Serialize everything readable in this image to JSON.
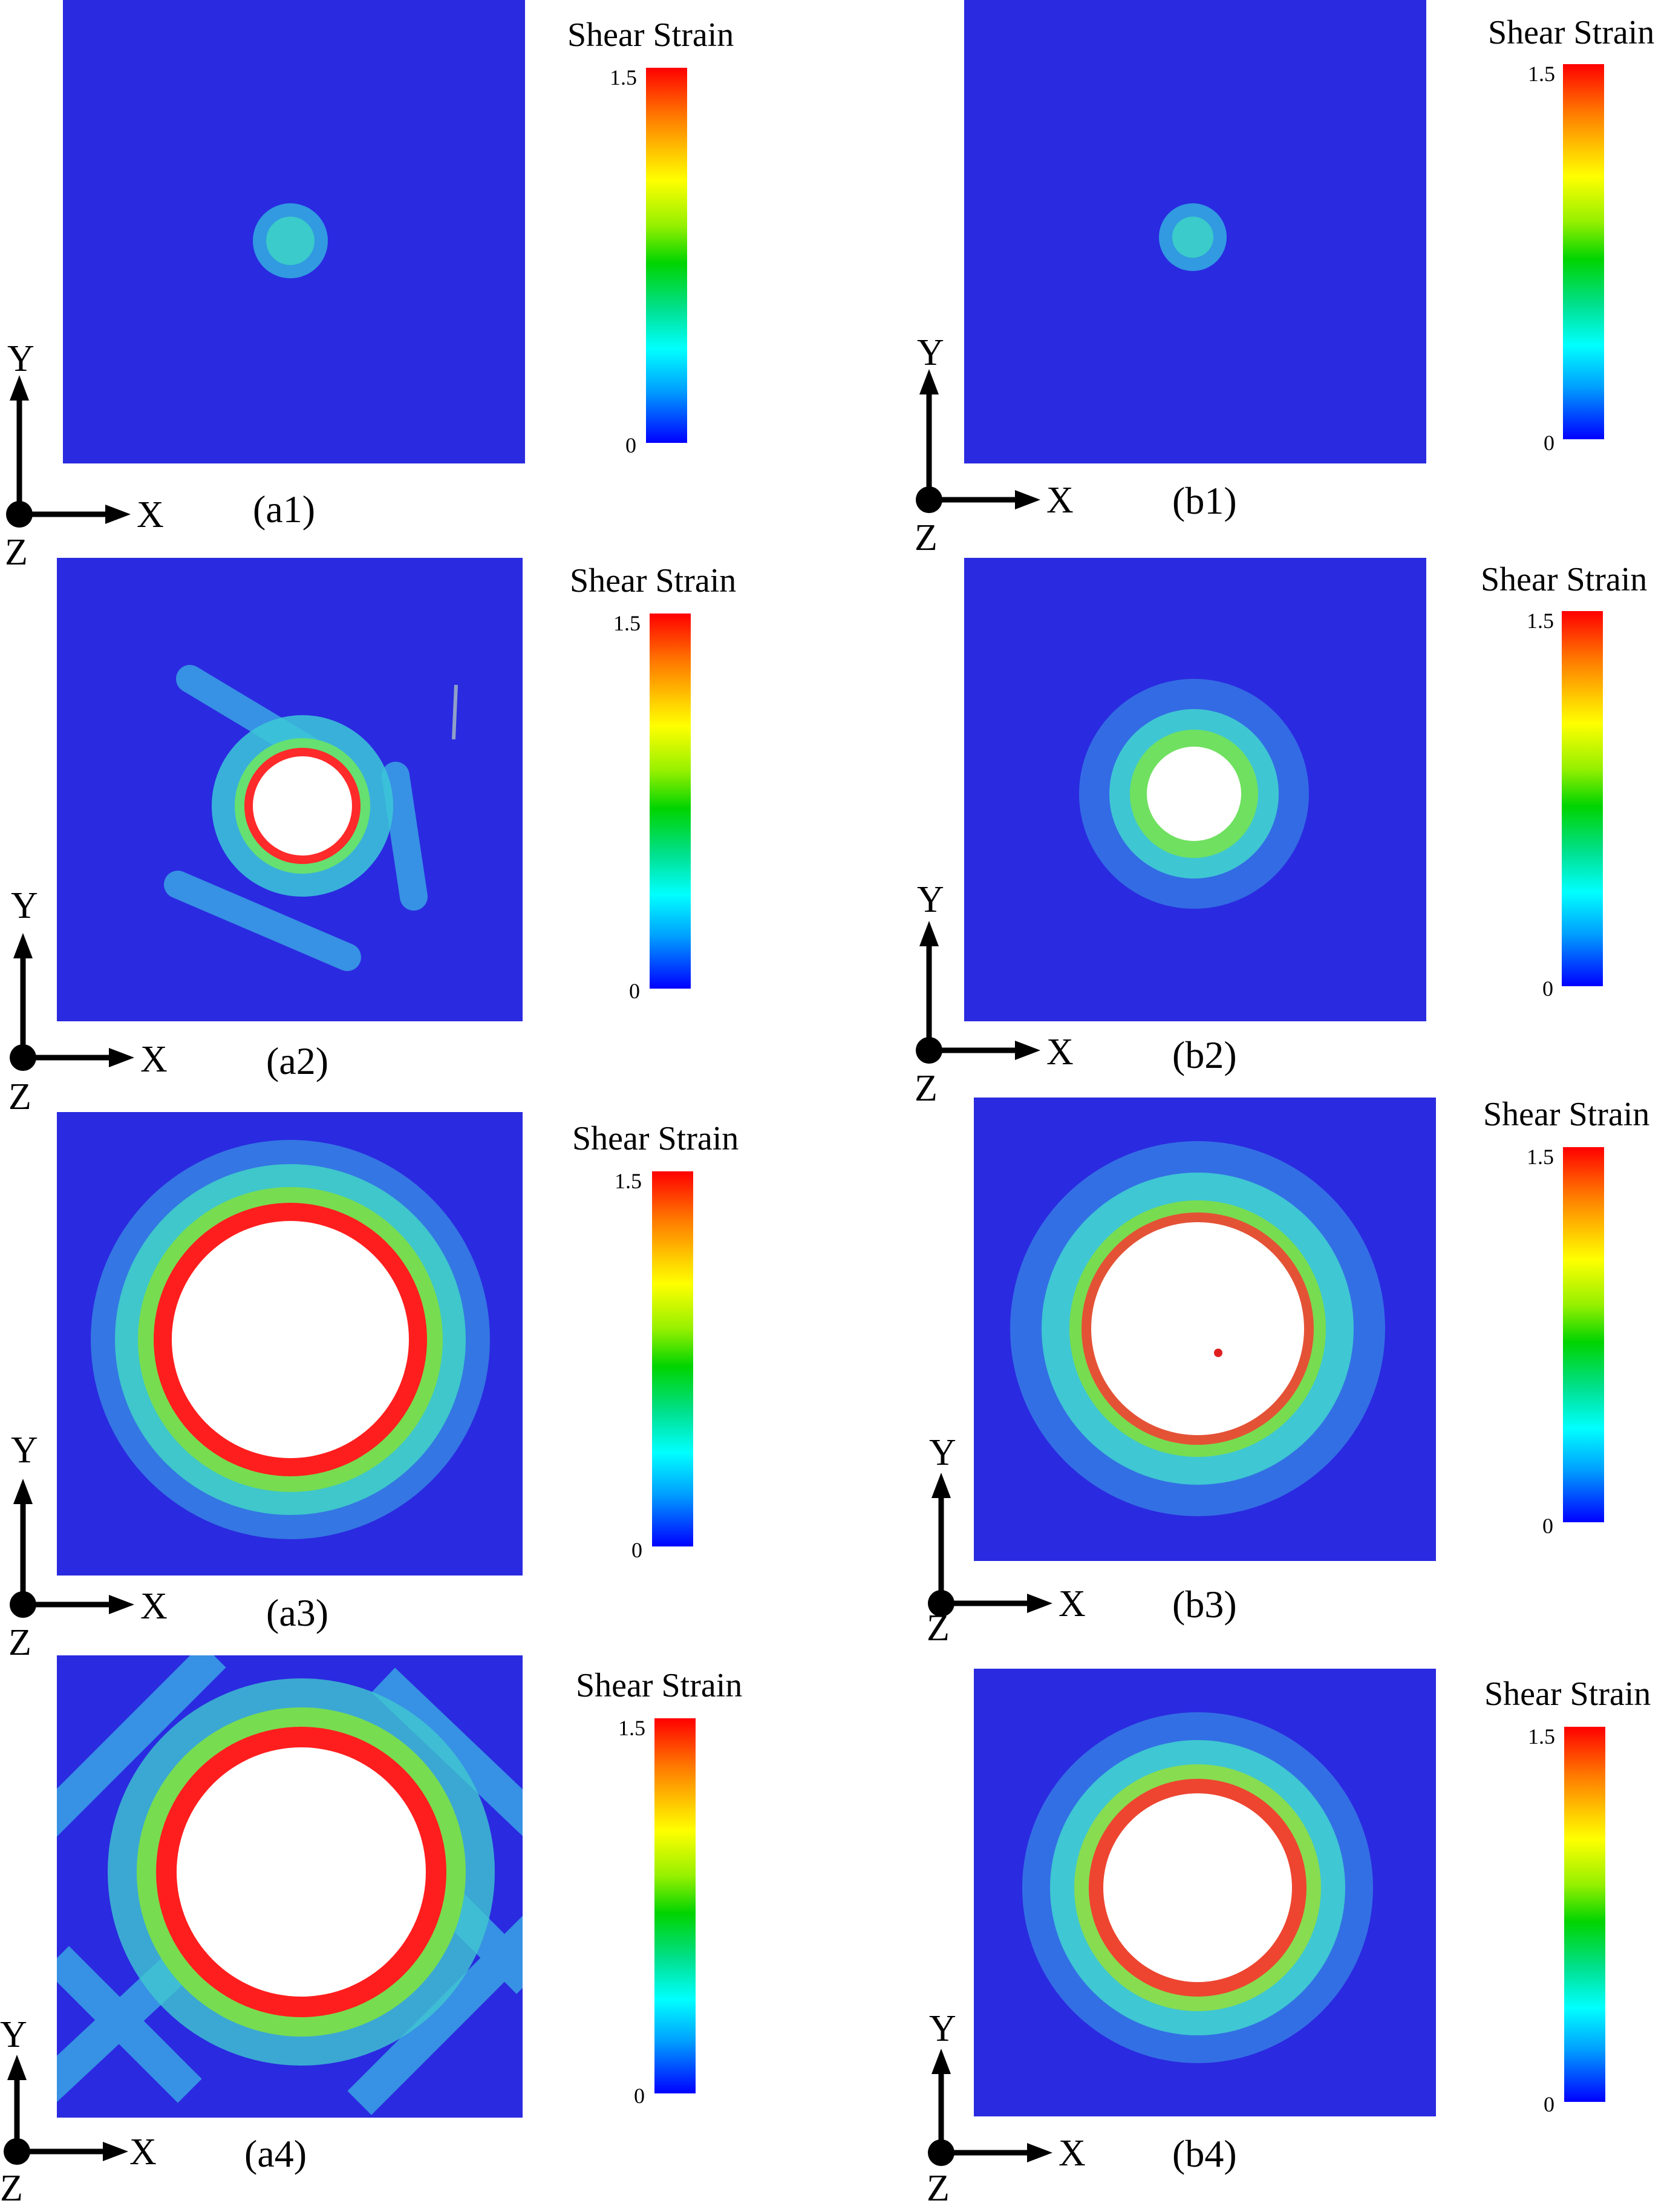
{
  "colorbar": {
    "title": "Shear Strain",
    "max_label": "1.5",
    "min_label": "0",
    "min_value": 0,
    "max_value": 1.5,
    "colors": [
      "#0000ff",
      "#00a0ff",
      "#00ffff",
      "#00e08c",
      "#00d400",
      "#96f000",
      "#ffff00",
      "#ffd200",
      "#ff7a00",
      "#ff0000"
    ]
  },
  "axes": {
    "y_label": "Y",
    "x_label": "X",
    "z_label": "Z"
  },
  "background_color": "#2a2ae0",
  "panels": [
    {
      "id": "a1",
      "caption": "(a1)",
      "void": false,
      "damage": "small"
    },
    {
      "id": "b1",
      "caption": "(b1)",
      "void": false,
      "damage": "small"
    },
    {
      "id": "a2",
      "caption": "(a2)",
      "void": true,
      "damage": "medium"
    },
    {
      "id": "b2",
      "caption": "(b2)",
      "void": true,
      "damage": "medium"
    },
    {
      "id": "a3",
      "caption": "(a3)",
      "void": true,
      "damage": "large"
    },
    {
      "id": "b3",
      "caption": "(b3)",
      "void": true,
      "damage": "large"
    },
    {
      "id": "a4",
      "caption": "(a4)",
      "void": true,
      "damage": "very-large"
    },
    {
      "id": "b4",
      "caption": "(b4)",
      "void": true,
      "damage": "large"
    }
  ]
}
